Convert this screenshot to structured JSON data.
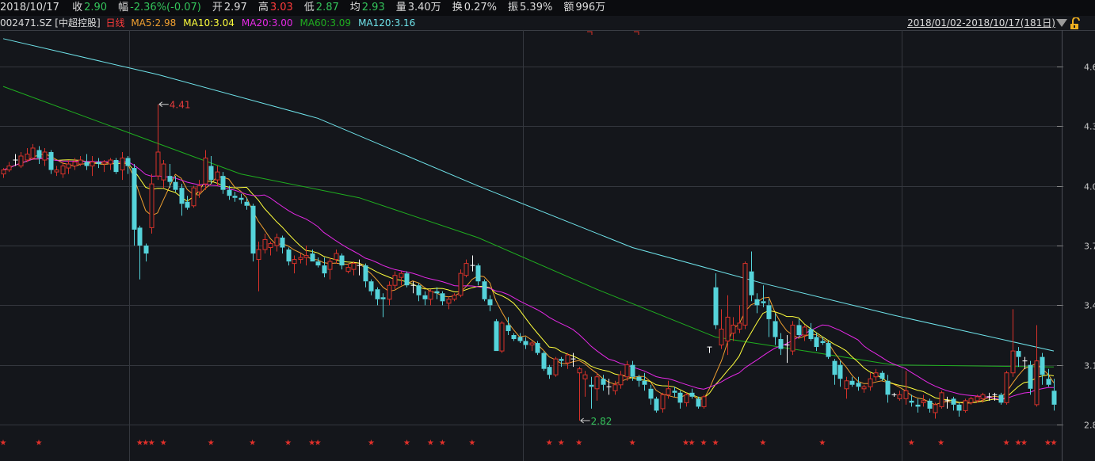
{
  "header": {
    "date": "2018/10/17",
    "stats": [
      {
        "label": "收",
        "value": "2.90",
        "tone": "dn"
      },
      {
        "label": "幅",
        "value": "-2.36%(-0.07)",
        "tone": "dn"
      },
      {
        "label": "开",
        "value": "2.97",
        "tone": "wh"
      },
      {
        "label": "高",
        "value": "3.03",
        "tone": "up"
      },
      {
        "label": "低",
        "value": "2.87",
        "tone": "dn"
      },
      {
        "label": "均",
        "value": "2.93",
        "tone": "dn"
      },
      {
        "label": "量",
        "value": "3.40万",
        "tone": "wh"
      },
      {
        "label": "换",
        "value": "0.27%",
        "tone": "wh"
      },
      {
        "label": "振",
        "value": "5.39%",
        "tone": "wh"
      },
      {
        "label": "额",
        "value": "996万",
        "tone": "wh"
      }
    ]
  },
  "legend": {
    "symbol": "002471.SZ [中超控股]",
    "period": "日线",
    "ma": [
      {
        "text": "MA5:2.98",
        "color": "#f0a030"
      },
      {
        "text": "MA10:3.04",
        "color": "#ffff3c"
      },
      {
        "text": "MA20:3.00",
        "color": "#e629e6"
      },
      {
        "text": "MA60:3.09",
        "color": "#1fae1f"
      },
      {
        "text": "MA120:3.16",
        "color": "#6fe3ea"
      }
    ]
  },
  "range_label": "2018/01/02-2018/10/17(181日)",
  "chart_data": {
    "type": "candlestick",
    "ylim": [
      2.8,
      4.6
    ],
    "yticks": [
      "4.6",
      "4.3",
      "4.0",
      "3.7",
      "3.4",
      "3.1",
      "2.8"
    ],
    "grid": true,
    "colors": {
      "up": "#d8322a",
      "down": "#55d3da",
      "flat": "#ffffff"
    },
    "annotations": [
      {
        "text": "4.41",
        "index": 26,
        "price": 4.41,
        "color": "#e33b3b"
      },
      {
        "text": "2.82",
        "index": 97,
        "price": 2.82,
        "color": "#33c35a"
      }
    ],
    "candles_ohlc": [
      [
        4.06,
        4.09,
        4.04,
        4.08
      ],
      [
        4.08,
        4.12,
        4.07,
        4.1
      ],
      [
        4.13,
        4.16,
        4.1,
        4.13
      ],
      [
        4.1,
        4.17,
        4.09,
        4.15
      ],
      [
        4.13,
        4.19,
        4.12,
        4.16
      ],
      [
        4.14,
        4.21,
        4.13,
        4.19
      ],
      [
        4.18,
        4.2,
        4.11,
        4.14
      ],
      [
        4.13,
        4.19,
        4.1,
        4.17
      ],
      [
        4.17,
        4.18,
        4.06,
        4.08
      ],
      [
        4.07,
        4.1,
        4.05,
        4.08
      ],
      [
        4.06,
        4.12,
        4.04,
        4.1
      ],
      [
        4.09,
        4.13,
        4.06,
        4.11
      ],
      [
        4.1,
        4.14,
        4.08,
        4.12
      ],
      [
        4.11,
        4.15,
        4.1,
        4.13
      ],
      [
        4.12,
        4.16,
        4.08,
        4.1
      ],
      [
        4.1,
        4.15,
        4.05,
        4.12
      ],
      [
        4.12,
        4.14,
        4.09,
        4.11
      ],
      [
        4.11,
        4.13,
        4.07,
        4.12
      ],
      [
        4.11,
        4.14,
        4.08,
        4.13
      ],
      [
        4.13,
        4.14,
        4.06,
        4.07
      ],
      [
        4.08,
        4.17,
        4.03,
        4.14
      ],
      [
        4.14,
        4.15,
        4.06,
        4.1
      ],
      [
        4.09,
        4.11,
        3.7,
        3.78
      ],
      [
        3.79,
        3.8,
        3.53,
        3.7
      ],
      [
        3.7,
        3.71,
        3.62,
        3.66
      ],
      [
        3.79,
        4.06,
        3.76,
        4.01
      ],
      [
        4.05,
        4.41,
        4.03,
        4.17
      ],
      [
        4.03,
        4.13,
        3.99,
        4.11
      ],
      [
        4.05,
        4.11,
        3.99,
        4.02
      ],
      [
        4.02,
        4.05,
        3.97,
        3.98
      ],
      [
        3.99,
        4.01,
        3.85,
        3.91
      ],
      [
        3.92,
        3.95,
        3.88,
        3.89
      ],
      [
        3.9,
        4.0,
        3.89,
        3.99
      ],
      [
        3.97,
        4.03,
        3.94,
        4.0
      ],
      [
        4.01,
        4.18,
        3.98,
        4.14
      ],
      [
        4.1,
        4.15,
        4.01,
        4.03
      ],
      [
        4.03,
        4.1,
        4.0,
        4.07
      ],
      [
        4.05,
        4.07,
        3.96,
        3.98
      ],
      [
        3.98,
        4.0,
        3.93,
        3.95
      ],
      [
        3.95,
        3.97,
        3.92,
        3.94
      ],
      [
        3.94,
        3.96,
        3.91,
        3.93
      ],
      [
        3.92,
        3.94,
        3.88,
        3.9
      ],
      [
        3.9,
        3.91,
        3.62,
        3.66
      ],
      [
        3.63,
        3.72,
        3.47,
        3.68
      ],
      [
        3.68,
        3.76,
        3.66,
        3.73
      ],
      [
        3.69,
        3.72,
        3.65,
        3.71
      ],
      [
        3.7,
        3.76,
        3.67,
        3.74
      ],
      [
        3.74,
        3.75,
        3.66,
        3.69
      ],
      [
        3.68,
        3.69,
        3.6,
        3.62
      ],
      [
        3.61,
        3.65,
        3.56,
        3.63
      ],
      [
        3.63,
        3.66,
        3.61,
        3.64
      ],
      [
        3.64,
        3.7,
        3.6,
        3.65
      ],
      [
        3.66,
        3.68,
        3.62,
        3.62
      ],
      [
        3.62,
        3.64,
        3.59,
        3.6
      ],
      [
        3.6,
        3.64,
        3.54,
        3.56
      ],
      [
        3.58,
        3.64,
        3.53,
        3.62
      ],
      [
        3.63,
        3.68,
        3.61,
        3.66
      ],
      [
        3.65,
        3.66,
        3.58,
        3.6
      ],
      [
        3.57,
        3.61,
        3.56,
        3.59
      ],
      [
        3.58,
        3.62,
        3.55,
        3.61
      ],
      [
        3.6,
        3.63,
        3.55,
        3.6
      ],
      [
        3.6,
        3.61,
        3.49,
        3.52
      ],
      [
        3.52,
        3.53,
        3.45,
        3.47
      ],
      [
        3.48,
        3.49,
        3.4,
        3.43
      ],
      [
        3.44,
        3.46,
        3.34,
        3.43
      ],
      [
        3.43,
        3.52,
        3.4,
        3.5
      ],
      [
        3.5,
        3.57,
        3.48,
        3.55
      ],
      [
        3.54,
        3.57,
        3.5,
        3.56
      ],
      [
        3.56,
        3.57,
        3.49,
        3.5
      ],
      [
        3.5,
        3.52,
        3.46,
        3.5
      ],
      [
        3.5,
        3.51,
        3.42,
        3.45
      ],
      [
        3.45,
        3.47,
        3.4,
        3.43
      ],
      [
        3.43,
        3.48,
        3.4,
        3.47
      ],
      [
        3.47,
        3.49,
        3.43,
        3.46
      ],
      [
        3.46,
        3.47,
        3.4,
        3.42
      ],
      [
        3.41,
        3.44,
        3.38,
        3.43
      ],
      [
        3.43,
        3.46,
        3.42,
        3.45
      ],
      [
        3.45,
        3.58,
        3.44,
        3.56
      ],
      [
        3.55,
        3.63,
        3.54,
        3.61
      ],
      [
        3.6,
        3.65,
        3.57,
        3.6
      ],
      [
        3.6,
        3.61,
        3.5,
        3.52
      ],
      [
        3.52,
        3.53,
        3.42,
        3.43
      ],
      [
        3.43,
        3.45,
        3.37,
        3.4
      ],
      [
        3.32,
        3.33,
        3.17,
        3.17
      ],
      [
        3.17,
        3.32,
        3.16,
        3.31
      ],
      [
        3.3,
        3.34,
        3.25,
        3.27
      ],
      [
        3.25,
        3.26,
        3.22,
        3.23
      ],
      [
        3.24,
        3.26,
        3.21,
        3.22
      ],
      [
        3.22,
        3.24,
        3.18,
        3.2
      ],
      [
        3.2,
        3.22,
        3.17,
        3.21
      ],
      [
        3.21,
        3.22,
        3.15,
        3.16
      ],
      [
        3.16,
        3.17,
        3.07,
        3.08
      ],
      [
        3.09,
        3.1,
        3.03,
        3.05
      ],
      [
        3.05,
        3.14,
        3.04,
        3.13
      ],
      [
        3.13,
        3.14,
        3.09,
        3.12
      ],
      [
        3.11,
        3.16,
        3.08,
        3.15
      ],
      [
        3.13,
        3.16,
        3.09,
        3.13
      ],
      [
        3.06,
        3.09,
        2.82,
        3.08
      ],
      [
        3.03,
        3.07,
        2.94,
        3.05
      ],
      [
        3.0,
        3.04,
        2.88,
        2.99
      ],
      [
        2.98,
        3.06,
        2.92,
        3.04
      ],
      [
        3.03,
        3.05,
        2.97,
        3.0
      ],
      [
        2.99,
        3.03,
        2.95,
        2.99
      ],
      [
        2.97,
        3.02,
        2.95,
        3.0
      ],
      [
        3.0,
        3.07,
        2.98,
        3.05
      ],
      [
        3.04,
        3.12,
        3.02,
        3.1
      ],
      [
        3.1,
        3.12,
        3.02,
        3.04
      ],
      [
        3.04,
        3.05,
        2.99,
        3.02
      ],
      [
        3.02,
        3.06,
        2.97,
        3.0
      ],
      [
        2.98,
        3.0,
        2.9,
        2.93
      ],
      [
        2.93,
        2.94,
        2.86,
        2.87
      ],
      [
        2.88,
        2.96,
        2.86,
        2.95
      ],
      [
        2.95,
        3.02,
        2.93,
        2.98
      ],
      [
        2.97,
        2.99,
        2.94,
        2.96
      ],
      [
        2.96,
        2.97,
        2.88,
        2.91
      ],
      [
        2.91,
        2.96,
        2.89,
        2.95
      ],
      [
        2.96,
        2.98,
        2.93,
        2.94
      ],
      [
        2.93,
        2.94,
        2.88,
        2.89
      ],
      [
        2.89,
        2.95,
        2.88,
        2.94
      ],
      [
        3.19,
        3.19,
        3.16,
        3.19
      ],
      [
        3.49,
        3.56,
        3.28,
        3.3
      ],
      [
        3.2,
        3.38,
        3.18,
        3.28
      ],
      [
        3.22,
        3.45,
        3.15,
        3.34
      ],
      [
        3.26,
        3.34,
        3.22,
        3.3
      ],
      [
        3.28,
        3.4,
        3.26,
        3.31
      ],
      [
        3.3,
        3.62,
        3.28,
        3.61
      ],
      [
        3.57,
        3.67,
        3.42,
        3.45
      ],
      [
        3.43,
        3.46,
        3.36,
        3.4
      ],
      [
        3.42,
        3.5,
        3.39,
        3.41
      ],
      [
        3.4,
        3.43,
        3.24,
        3.33
      ],
      [
        3.32,
        3.36,
        3.2,
        3.24
      ],
      [
        3.23,
        3.26,
        3.15,
        3.18
      ],
      [
        3.2,
        3.25,
        3.11,
        3.2
      ],
      [
        3.17,
        3.32,
        3.15,
        3.3
      ],
      [
        3.3,
        3.33,
        3.24,
        3.25
      ],
      [
        3.25,
        3.3,
        3.22,
        3.29
      ],
      [
        3.28,
        3.31,
        3.22,
        3.23
      ],
      [
        3.24,
        3.26,
        3.17,
        3.19
      ],
      [
        3.22,
        3.24,
        3.2,
        3.21
      ],
      [
        3.21,
        3.22,
        3.13,
        3.14
      ],
      [
        3.12,
        3.13,
        3.0,
        3.05
      ],
      [
        3.1,
        3.12,
        2.99,
        3.03
      ],
      [
        2.98,
        3.04,
        2.93,
        3.02
      ],
      [
        3.02,
        3.04,
        2.99,
        3.0
      ],
      [
        3.01,
        3.04,
        2.97,
        2.99
      ],
      [
        2.98,
        3.0,
        2.96,
        2.99
      ],
      [
        2.99,
        3.06,
        2.97,
        3.03
      ],
      [
        3.04,
        3.08,
        3.02,
        3.06
      ],
      [
        3.06,
        3.07,
        3.02,
        3.03
      ],
      [
        3.02,
        3.05,
        2.91,
        2.95
      ],
      [
        2.95,
        2.96,
        2.94,
        2.95
      ],
      [
        2.93,
        2.97,
        2.92,
        2.95
      ],
      [
        2.93,
        3.07,
        2.9,
        2.97
      ],
      [
        2.92,
        2.95,
        2.89,
        2.91
      ],
      [
        2.9,
        2.93,
        2.86,
        2.89
      ],
      [
        2.91,
        2.95,
        2.89,
        2.92
      ],
      [
        2.92,
        2.93,
        2.86,
        2.88
      ],
      [
        2.86,
        2.91,
        2.83,
        2.9
      ],
      [
        2.89,
        2.97,
        2.88,
        2.96
      ],
      [
        2.92,
        2.94,
        2.88,
        2.92
      ],
      [
        2.93,
        2.94,
        2.87,
        2.9
      ],
      [
        2.9,
        2.91,
        2.84,
        2.87
      ],
      [
        2.87,
        2.93,
        2.86,
        2.92
      ],
      [
        2.91,
        2.94,
        2.9,
        2.93
      ],
      [
        2.92,
        2.95,
        2.91,
        2.94
      ],
      [
        2.93,
        2.96,
        2.91,
        2.95
      ],
      [
        2.94,
        2.96,
        2.92,
        2.94
      ],
      [
        2.95,
        2.96,
        2.92,
        2.95
      ],
      [
        2.95,
        2.96,
        2.9,
        2.91
      ],
      [
        2.91,
        3.07,
        2.9,
        3.06
      ],
      [
        3.06,
        3.38,
        3.04,
        3.17
      ],
      [
        3.17,
        3.19,
        3.09,
        3.14
      ],
      [
        3.12,
        3.14,
        3.08,
        3.12
      ],
      [
        3.1,
        3.12,
        2.95,
        2.98
      ],
      [
        2.9,
        3.3,
        2.89,
        3.12
      ],
      [
        3.14,
        3.16,
        3.0,
        3.05
      ],
      [
        3.03,
        3.08,
        2.99,
        3.0
      ],
      [
        2.97,
        3.03,
        2.87,
        2.9
      ]
    ],
    "computed_ma": [
      {
        "name": "MA5",
        "period": 5,
        "color": "#f0a030"
      },
      {
        "name": "MA10",
        "period": 10,
        "color": "#ffff3c"
      },
      {
        "name": "MA20",
        "period": 20,
        "color": "#e629e6"
      }
    ],
    "long_ma": [
      {
        "name": "MA60",
        "color": "#1fae1f",
        "points": [
          [
            0,
            4.5
          ],
          [
            20,
            4.28
          ],
          [
            40,
            4.06
          ],
          [
            60,
            3.94
          ],
          [
            80,
            3.74
          ],
          [
            100,
            3.48
          ],
          [
            120,
            3.24
          ],
          [
            133,
            3.18
          ],
          [
            150,
            3.1
          ],
          [
            177,
            3.09
          ]
        ]
      },
      {
        "name": "MA120",
        "color": "#6fe3ea",
        "points": [
          [
            0,
            4.74
          ],
          [
            26,
            4.56
          ],
          [
            53,
            4.34
          ],
          [
            80,
            4.0
          ],
          [
            106,
            3.69
          ],
          [
            128,
            3.51
          ],
          [
            150,
            3.35
          ],
          [
            177,
            3.17
          ]
        ]
      }
    ],
    "signal_marker_indices": [
      0,
      6,
      23,
      24,
      25,
      27,
      35,
      42,
      48,
      52,
      53,
      62,
      68,
      72,
      74,
      79,
      92,
      94,
      97,
      106,
      115,
      116,
      118,
      120,
      128,
      138,
      153,
      158,
      169,
      171,
      172,
      176,
      177
    ],
    "signal_marker_symbol": "★",
    "signal_marker_color": "#e0302a"
  }
}
